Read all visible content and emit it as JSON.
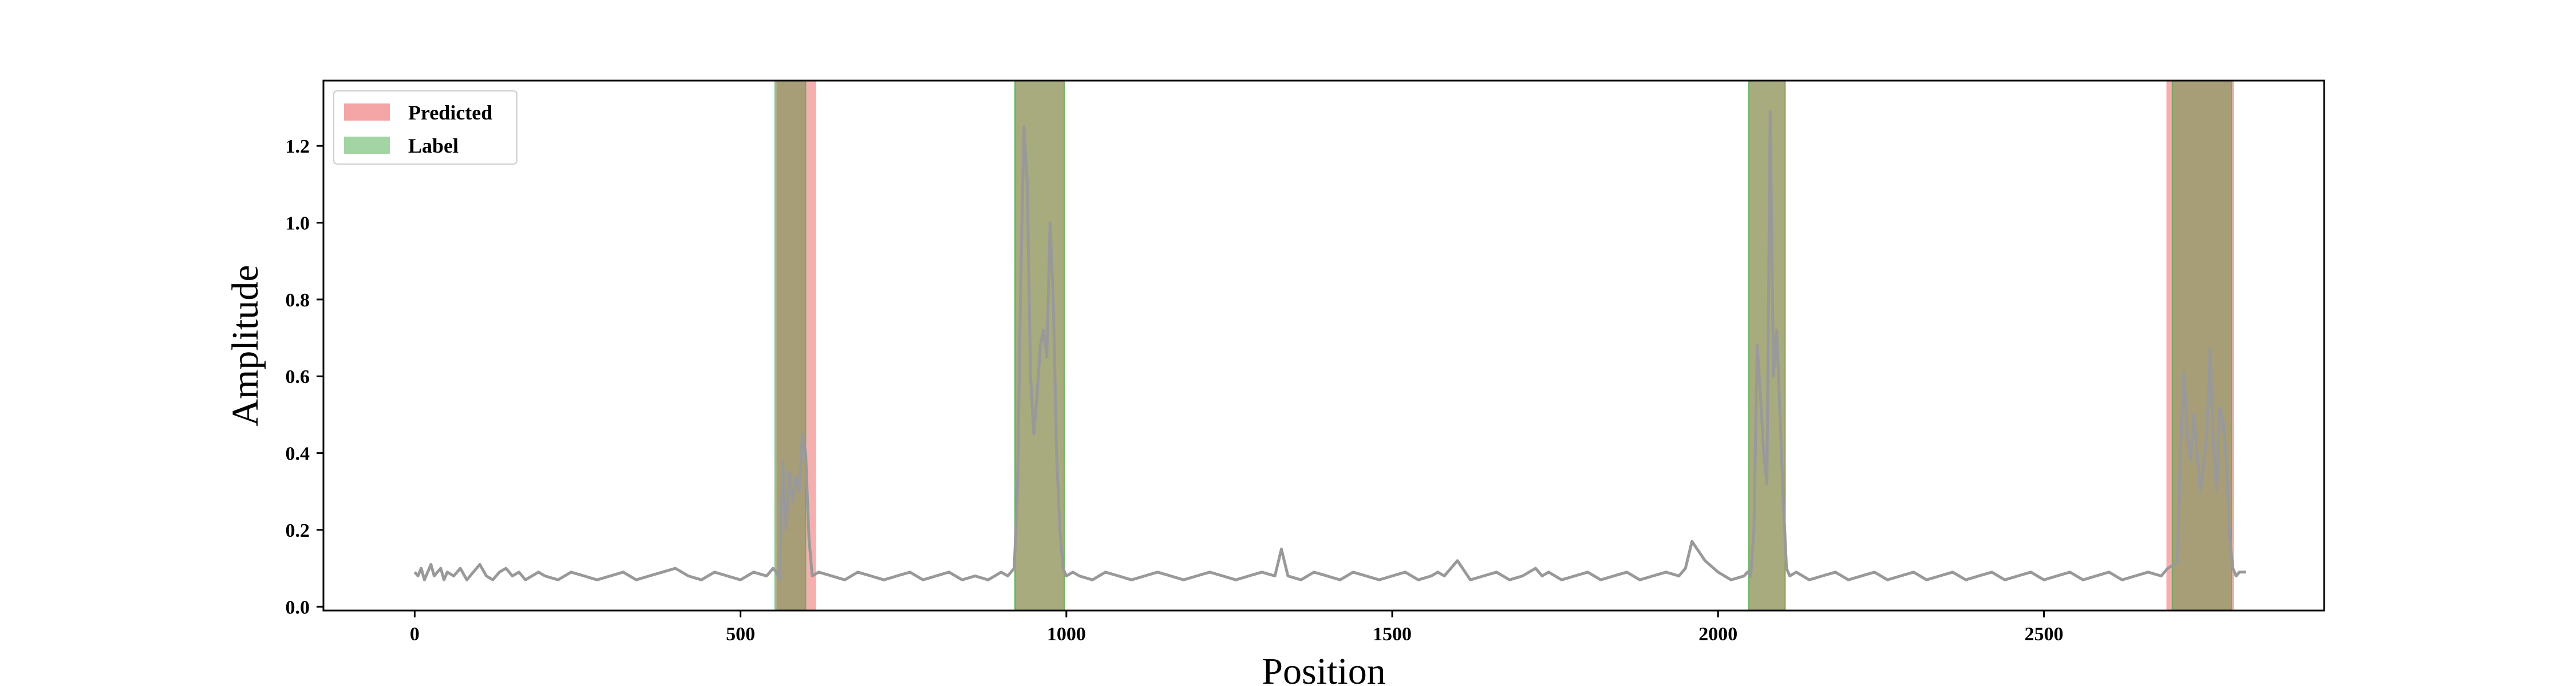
{
  "chart_data": {
    "type": "line",
    "xlabel": "Position",
    "ylabel": "Amplitude",
    "xlim": [
      -140,
      2930
    ],
    "ylim": [
      -0.01,
      1.37
    ],
    "xticks": [
      0,
      500,
      1000,
      1500,
      2000,
      2500
    ],
    "yticks": [
      0.0,
      0.2,
      0.4,
      0.6,
      0.8,
      1.0,
      1.2
    ],
    "grid": false,
    "legend": {
      "placement": "top-left",
      "entries": [
        {
          "label": "Predicted",
          "color": "#f4a6a6"
        },
        {
          "label": "Label",
          "color": "#a3d4a3"
        }
      ]
    },
    "predicted_regions": [
      [
        555,
        616
      ],
      [
        2688,
        2792
      ]
    ],
    "label_regions": [
      [
        553,
        600
      ],
      [
        921,
        997
      ],
      [
        2047,
        2103
      ],
      [
        2697,
        2788
      ]
    ],
    "series": [
      {
        "color": "#999999",
        "x": [
          0,
          5,
          10,
          15,
          20,
          25,
          30,
          35,
          40,
          45,
          50,
          60,
          70,
          80,
          90,
          100,
          110,
          120,
          130,
          140,
          150,
          160,
          170,
          180,
          190,
          200,
          220,
          240,
          260,
          280,
          300,
          320,
          340,
          360,
          380,
          400,
          420,
          440,
          460,
          480,
          500,
          520,
          540,
          550,
          555,
          560,
          565,
          570,
          575,
          580,
          585,
          590,
          595,
          600,
          605,
          610,
          620,
          640,
          660,
          680,
          700,
          720,
          740,
          760,
          780,
          800,
          820,
          840,
          860,
          880,
          900,
          910,
          920,
          925,
          930,
          935,
          940,
          945,
          950,
          955,
          960,
          965,
          970,
          975,
          980,
          985,
          990,
          995,
          1000,
          1010,
          1020,
          1040,
          1060,
          1080,
          1100,
          1120,
          1140,
          1160,
          1180,
          1200,
          1220,
          1240,
          1260,
          1280,
          1300,
          1320,
          1330,
          1340,
          1360,
          1380,
          1400,
          1420,
          1440,
          1460,
          1480,
          1500,
          1520,
          1540,
          1560,
          1570,
          1580,
          1600,
          1620,
          1640,
          1660,
          1680,
          1700,
          1720,
          1730,
          1740,
          1760,
          1780,
          1800,
          1820,
          1840,
          1860,
          1880,
          1900,
          1920,
          1940,
          1950,
          1960,
          1980,
          2000,
          2020,
          2040,
          2045,
          2050,
          2055,
          2060,
          2065,
          2070,
          2075,
          2080,
          2085,
          2090,
          2095,
          2100,
          2105,
          2110,
          2120,
          2140,
          2160,
          2180,
          2200,
          2220,
          2240,
          2260,
          2280,
          2300,
          2320,
          2340,
          2360,
          2380,
          2400,
          2420,
          2440,
          2460,
          2480,
          2500,
          2520,
          2540,
          2560,
          2580,
          2600,
          2620,
          2640,
          2660,
          2680,
          2690,
          2700,
          2705,
          2710,
          2715,
          2720,
          2725,
          2730,
          2735,
          2740,
          2745,
          2750,
          2755,
          2760,
          2765,
          2770,
          2775,
          2780,
          2785,
          2790,
          2795,
          2800,
          2810
        ],
        "y": [
          0.09,
          0.08,
          0.1,
          0.07,
          0.09,
          0.11,
          0.08,
          0.09,
          0.1,
          0.07,
          0.09,
          0.08,
          0.1,
          0.07,
          0.09,
          0.11,
          0.08,
          0.07,
          0.09,
          0.1,
          0.08,
          0.09,
          0.07,
          0.08,
          0.09,
          0.08,
          0.07,
          0.09,
          0.08,
          0.07,
          0.08,
          0.09,
          0.07,
          0.08,
          0.09,
          0.1,
          0.08,
          0.07,
          0.09,
          0.08,
          0.07,
          0.09,
          0.08,
          0.1,
          0.09,
          0.07,
          0.38,
          0.2,
          0.35,
          0.27,
          0.34,
          0.3,
          0.45,
          0.4,
          0.18,
          0.08,
          0.09,
          0.08,
          0.07,
          0.09,
          0.08,
          0.07,
          0.08,
          0.09,
          0.07,
          0.08,
          0.09,
          0.07,
          0.08,
          0.07,
          0.09,
          0.08,
          0.1,
          0.3,
          0.85,
          1.25,
          1.1,
          0.6,
          0.45,
          0.55,
          0.68,
          0.72,
          0.65,
          1.0,
          0.8,
          0.4,
          0.2,
          0.1,
          0.08,
          0.09,
          0.08,
          0.07,
          0.09,
          0.08,
          0.07,
          0.08,
          0.09,
          0.08,
          0.07,
          0.08,
          0.09,
          0.08,
          0.07,
          0.08,
          0.09,
          0.08,
          0.15,
          0.08,
          0.07,
          0.09,
          0.08,
          0.07,
          0.09,
          0.08,
          0.07,
          0.08,
          0.09,
          0.07,
          0.08,
          0.09,
          0.08,
          0.12,
          0.07,
          0.08,
          0.09,
          0.07,
          0.08,
          0.1,
          0.08,
          0.09,
          0.07,
          0.08,
          0.09,
          0.07,
          0.08,
          0.09,
          0.07,
          0.08,
          0.09,
          0.08,
          0.1,
          0.17,
          0.12,
          0.09,
          0.07,
          0.08,
          0.09,
          0.08,
          0.2,
          0.68,
          0.55,
          0.4,
          0.32,
          1.29,
          0.6,
          0.72,
          0.5,
          0.28,
          0.1,
          0.08,
          0.09,
          0.07,
          0.08,
          0.09,
          0.07,
          0.08,
          0.09,
          0.07,
          0.08,
          0.09,
          0.07,
          0.08,
          0.09,
          0.07,
          0.08,
          0.09,
          0.07,
          0.08,
          0.09,
          0.07,
          0.08,
          0.09,
          0.07,
          0.08,
          0.09,
          0.07,
          0.08,
          0.09,
          0.08,
          0.1,
          0.11,
          0.12,
          0.43,
          0.61,
          0.45,
          0.38,
          0.5,
          0.4,
          0.3,
          0.37,
          0.45,
          0.67,
          0.42,
          0.3,
          0.52,
          0.48,
          0.38,
          0.18,
          0.1,
          0.08,
          0.09,
          0.09
        ]
      }
    ]
  }
}
